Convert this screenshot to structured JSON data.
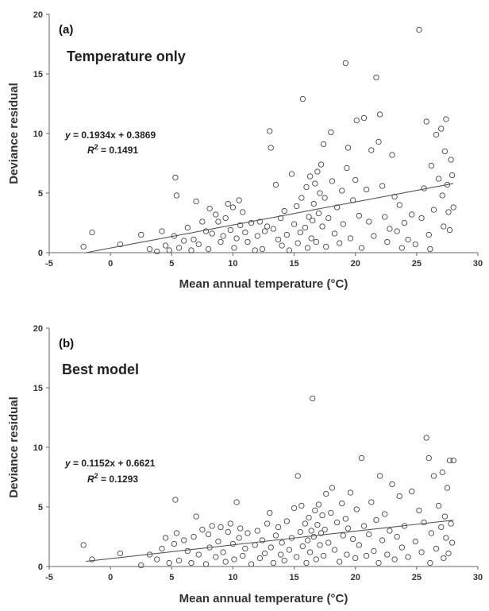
{
  "chart_data": [
    {
      "type": "scatter",
      "panel_label": "(a)",
      "title": "Temperature only",
      "xlabel": "Mean annual temperature (°C)",
      "ylabel": "Deviance residual",
      "xlim": [
        -5,
        30
      ],
      "ylim": [
        0,
        20
      ],
      "xticks": [
        "-5",
        "0",
        "5",
        "10",
        "15",
        "20",
        "25",
        "30"
      ],
      "yticks": [
        "0",
        "5",
        "10",
        "15",
        "20"
      ],
      "trendline": {
        "slope": 0.1934,
        "intercept": 0.3869,
        "x_range": [
          -2,
          28
        ]
      },
      "equation": {
        "y_prefix": "y",
        "formula": " = 0.1934x + 0.3869",
        "r2_prefix": "R",
        "r2_formula": " = 0.1491"
      },
      "points": [
        [
          -2.2,
          0.5
        ],
        [
          -1.5,
          1.7
        ],
        [
          0.8,
          0.7
        ],
        [
          2.5,
          1.5
        ],
        [
          3.2,
          0.3
        ],
        [
          3.8,
          0.1
        ],
        [
          4.2,
          1.8
        ],
        [
          4.5,
          0.6
        ],
        [
          4.8,
          0.2
        ],
        [
          5.2,
          1.4
        ],
        [
          5.3,
          6.3
        ],
        [
          5.4,
          4.8
        ],
        [
          5.6,
          0.4
        ],
        [
          6,
          1.0
        ],
        [
          6.3,
          2.1
        ],
        [
          6.6,
          0.2
        ],
        [
          6.8,
          1.1
        ],
        [
          7,
          4.3
        ],
        [
          7.2,
          0.7
        ],
        [
          7.5,
          2.6
        ],
        [
          7.8,
          1.8
        ],
        [
          8,
          0.3
        ],
        [
          8.1,
          3.7
        ],
        [
          8.3,
          1.6
        ],
        [
          8.6,
          3.2
        ],
        [
          8.8,
          2.6
        ],
        [
          9,
          0.9
        ],
        [
          9.2,
          1.4
        ],
        [
          9.4,
          2.9
        ],
        [
          9.6,
          4.1
        ],
        [
          9.8,
          1.9
        ],
        [
          10,
          3.8
        ],
        [
          10.1,
          0.4
        ],
        [
          10.3,
          1.2
        ],
        [
          10.5,
          4.4
        ],
        [
          10.6,
          2.3
        ],
        [
          10.8,
          3.4
        ],
        [
          11,
          1.7
        ],
        [
          11.2,
          0.9
        ],
        [
          11.5,
          2.5
        ],
        [
          11.8,
          0.2
        ],
        [
          12,
          1.4
        ],
        [
          12.2,
          2.6
        ],
        [
          12.4,
          0.3
        ],
        [
          12.6,
          1.8
        ],
        [
          12.8,
          2.2
        ],
        [
          13,
          10.2
        ],
        [
          13.1,
          8.8
        ],
        [
          13.3,
          2.0
        ],
        [
          13.5,
          5.7
        ],
        [
          13.7,
          1.1
        ],
        [
          13.9,
          2.9
        ],
        [
          14,
          0.6
        ],
        [
          14.2,
          3.5
        ],
        [
          14.4,
          1.5
        ],
        [
          14.6,
          0.2
        ],
        [
          14.8,
          6.6
        ],
        [
          15,
          2.4
        ],
        [
          15.2,
          3.9
        ],
        [
          15.3,
          0.8
        ],
        [
          15.5,
          1.7
        ],
        [
          15.6,
          4.6
        ],
        [
          15.7,
          12.9
        ],
        [
          15.9,
          2.1
        ],
        [
          16,
          5.5
        ],
        [
          16.1,
          0.4
        ],
        [
          16.2,
          3.0
        ],
        [
          16.3,
          6.4
        ],
        [
          16.4,
          1.2
        ],
        [
          16.5,
          2.7
        ],
        [
          16.6,
          4.1
        ],
        [
          16.7,
          5.8
        ],
        [
          16.8,
          0.9
        ],
        [
          16.9,
          6.8
        ],
        [
          17,
          3.3
        ],
        [
          17.1,
          5.0
        ],
        [
          17.2,
          7.4
        ],
        [
          17.3,
          2.2
        ],
        [
          17.4,
          9.1
        ],
        [
          17.5,
          4.6
        ],
        [
          17.6,
          0.5
        ],
        [
          17.8,
          2.9
        ],
        [
          18,
          10.1
        ],
        [
          18.1,
          6.0
        ],
        [
          18.3,
          1.6
        ],
        [
          18.5,
          3.8
        ],
        [
          18.7,
          0.8
        ],
        [
          18.9,
          5.2
        ],
        [
          19,
          2.4
        ],
        [
          19.2,
          15.9
        ],
        [
          19.3,
          7.1
        ],
        [
          19.4,
          8.8
        ],
        [
          19.6,
          1.2
        ],
        [
          19.8,
          4.4
        ],
        [
          20,
          6.1
        ],
        [
          20.1,
          11.1
        ],
        [
          20.3,
          3.1
        ],
        [
          20.5,
          0.4
        ],
        [
          20.7,
          11.3
        ],
        [
          20.9,
          5.3
        ],
        [
          21.1,
          2.6
        ],
        [
          21.3,
          8.6
        ],
        [
          21.5,
          1.4
        ],
        [
          21.7,
          14.7
        ],
        [
          21.9,
          9.3
        ],
        [
          22,
          11.6
        ],
        [
          22.2,
          5.6
        ],
        [
          22.4,
          3.0
        ],
        [
          22.6,
          0.9
        ],
        [
          22.8,
          2.0
        ],
        [
          23,
          8.2
        ],
        [
          23.2,
          4.7
        ],
        [
          23.4,
          1.8
        ],
        [
          23.6,
          4.0
        ],
        [
          23.8,
          0.4
        ],
        [
          24,
          2.5
        ],
        [
          24.3,
          1.1
        ],
        [
          24.6,
          3.2
        ],
        [
          24.9,
          0.7
        ],
        [
          25.2,
          18.7
        ],
        [
          25.4,
          2.9
        ],
        [
          25.6,
          5.4
        ],
        [
          25.8,
          11.0
        ],
        [
          26,
          1.5
        ],
        [
          26.2,
          7.3
        ],
        [
          26.4,
          3.6
        ],
        [
          26.6,
          9.9
        ],
        [
          26.8,
          6.2
        ],
        [
          27,
          10.4
        ],
        [
          27.1,
          4.8
        ],
        [
          27.2,
          2.2
        ],
        [
          27.3,
          8.5
        ],
        [
          27.4,
          11.2
        ],
        [
          27.5,
          5.7
        ],
        [
          27.6,
          3.4
        ],
        [
          27.7,
          1.9
        ],
        [
          27.8,
          7.8
        ],
        [
          27.9,
          6.5
        ],
        [
          28,
          3.8
        ],
        [
          26.1,
          0.3
        ]
      ]
    },
    {
      "type": "scatter",
      "panel_label": "(b)",
      "title": "Best model",
      "xlabel": "Mean annual temperature (°C)",
      "ylabel": "Deviance residual",
      "xlim": [
        -5,
        30
      ],
      "ylim": [
        0,
        20
      ],
      "xticks": [
        "-5",
        "0",
        "5",
        "10",
        "15",
        "20",
        "25",
        "30"
      ],
      "yticks": [
        "0",
        "5",
        "10",
        "15",
        "20"
      ],
      "trendline": {
        "slope": 0.1152,
        "intercept": 0.6621,
        "x_range": [
          -2,
          28
        ]
      },
      "equation": {
        "y_prefix": "y",
        "formula": " = 0.1152x + 0.6621",
        "r2_prefix": "R",
        "r2_formula": " = 0.1293"
      },
      "points": [
        [
          -2.2,
          1.8
        ],
        [
          -1.5,
          0.6
        ],
        [
          0.8,
          1.1
        ],
        [
          2.5,
          0.1
        ],
        [
          3.2,
          1.0
        ],
        [
          3.8,
          0.6
        ],
        [
          4.2,
          1.5
        ],
        [
          4.5,
          2.4
        ],
        [
          4.8,
          0.3
        ],
        [
          5.2,
          1.9
        ],
        [
          5.3,
          5.6
        ],
        [
          5.4,
          2.8
        ],
        [
          5.6,
          0.5
        ],
        [
          6,
          2.2
        ],
        [
          6.3,
          1.3
        ],
        [
          6.6,
          0.3
        ],
        [
          6.8,
          2.5
        ],
        [
          7,
          4.2
        ],
        [
          7.2,
          1.0
        ],
        [
          7.5,
          3.1
        ],
        [
          7.8,
          0.2
        ],
        [
          8,
          2.7
        ],
        [
          8.1,
          1.6
        ],
        [
          8.3,
          3.4
        ],
        [
          8.6,
          0.8
        ],
        [
          8.8,
          2.1
        ],
        [
          9,
          3.3
        ],
        [
          9.2,
          1.2
        ],
        [
          9.4,
          0.4
        ],
        [
          9.6,
          2.9
        ],
        [
          9.8,
          3.6
        ],
        [
          10,
          1.9
        ],
        [
          10.1,
          0.6
        ],
        [
          10.3,
          5.4
        ],
        [
          10.5,
          2.4
        ],
        [
          10.6,
          3.2
        ],
        [
          10.8,
          0.9
        ],
        [
          11,
          1.5
        ],
        [
          11.2,
          2.8
        ],
        [
          11.5,
          0.2
        ],
        [
          11.8,
          1.8
        ],
        [
          12,
          3.0
        ],
        [
          12.2,
          0.7
        ],
        [
          12.4,
          2.2
        ],
        [
          12.6,
          1.1
        ],
        [
          12.8,
          3.6
        ],
        [
          13,
          4.5
        ],
        [
          13.1,
          1.6
        ],
        [
          13.3,
          0.3
        ],
        [
          13.5,
          2.6
        ],
        [
          13.7,
          3.3
        ],
        [
          13.9,
          1.0
        ],
        [
          14,
          2.0
        ],
        [
          14.2,
          0.5
        ],
        [
          14.4,
          3.8
        ],
        [
          14.6,
          1.4
        ],
        [
          14.8,
          2.4
        ],
        [
          15,
          4.9
        ],
        [
          15.2,
          0.8
        ],
        [
          15.3,
          7.6
        ],
        [
          15.5,
          2.9
        ],
        [
          15.6,
          5.1
        ],
        [
          15.7,
          1.7
        ],
        [
          15.9,
          3.6
        ],
        [
          16,
          0.3
        ],
        [
          16.1,
          2.2
        ],
        [
          16.2,
          4.1
        ],
        [
          16.3,
          1.2
        ],
        [
          16.4,
          3.0
        ],
        [
          16.5,
          14.1
        ],
        [
          16.6,
          2.5
        ],
        [
          16.7,
          4.7
        ],
        [
          16.8,
          0.6
        ],
        [
          16.9,
          3.5
        ],
        [
          17,
          5.2
        ],
        [
          17.1,
          1.8
        ],
        [
          17.2,
          2.8
        ],
        [
          17.3,
          4.3
        ],
        [
          17.4,
          0.9
        ],
        [
          17.5,
          3.1
        ],
        [
          17.6,
          6.1
        ],
        [
          17.8,
          2.0
        ],
        [
          18,
          4.5
        ],
        [
          18.1,
          6.6
        ],
        [
          18.3,
          1.4
        ],
        [
          18.5,
          3.7
        ],
        [
          18.7,
          0.4
        ],
        [
          18.9,
          5.3
        ],
        [
          19,
          2.6
        ],
        [
          19.2,
          4.0
        ],
        [
          19.3,
          1.0
        ],
        [
          19.4,
          3.2
        ],
        [
          19.6,
          6.2
        ],
        [
          19.8,
          2.3
        ],
        [
          20,
          0.7
        ],
        [
          20.1,
          4.8
        ],
        [
          20.3,
          1.8
        ],
        [
          20.5,
          9.1
        ],
        [
          20.7,
          3.4
        ],
        [
          20.9,
          0.9
        ],
        [
          21.1,
          2.7
        ],
        [
          21.3,
          5.4
        ],
        [
          21.5,
          1.3
        ],
        [
          21.7,
          3.9
        ],
        [
          21.9,
          0.3
        ],
        [
          22,
          7.6
        ],
        [
          22.2,
          2.2
        ],
        [
          22.4,
          4.4
        ],
        [
          22.6,
          1.0
        ],
        [
          22.8,
          3.0
        ],
        [
          23,
          6.9
        ],
        [
          23.2,
          0.6
        ],
        [
          23.4,
          2.5
        ],
        [
          23.6,
          5.9
        ],
        [
          23.8,
          1.6
        ],
        [
          24,
          3.4
        ],
        [
          24.3,
          0.8
        ],
        [
          24.6,
          6.3
        ],
        [
          24.9,
          2.1
        ],
        [
          25.2,
          4.7
        ],
        [
          25.4,
          1.2
        ],
        [
          25.6,
          3.7
        ],
        [
          25.8,
          10.8
        ],
        [
          26,
          9.1
        ],
        [
          26.2,
          2.8
        ],
        [
          26.4,
          7.6
        ],
        [
          26.6,
          1.5
        ],
        [
          26.8,
          5.1
        ],
        [
          27,
          3.3
        ],
        [
          27.1,
          7.9
        ],
        [
          27.2,
          0.7
        ],
        [
          27.3,
          4.2
        ],
        [
          27.4,
          2.4
        ],
        [
          27.5,
          6.6
        ],
        [
          27.6,
          1.1
        ],
        [
          27.7,
          8.9
        ],
        [
          27.8,
          3.6
        ],
        [
          27.9,
          2.0
        ],
        [
          28,
          8.9
        ],
        [
          26.1,
          0.3
        ]
      ]
    }
  ]
}
